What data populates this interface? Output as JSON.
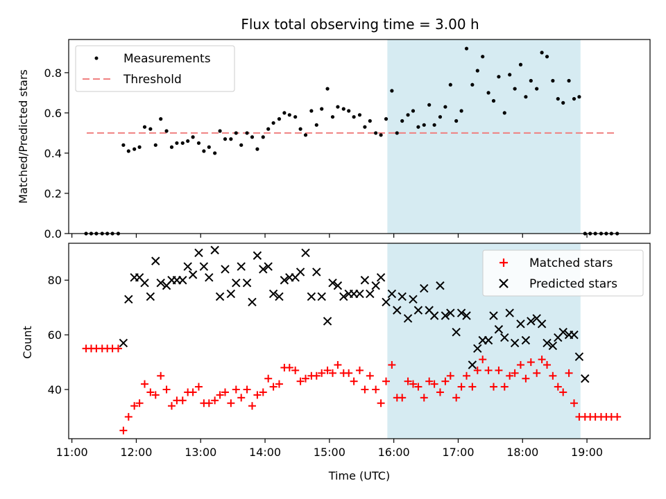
{
  "title": "Flux total observing time = 3.00 h",
  "colors": {
    "measurement": "#000000",
    "threshold": "#f08080",
    "matched": "#ff0000",
    "predicted": "#000000",
    "span": "#add8e6"
  },
  "chart_data": [
    {
      "type": "scatter",
      "panel": "top",
      "ylabel": "Matched/Predicted stars",
      "xlim_hours": [
        10.95,
        19.98
      ],
      "ylim": [
        0,
        0.965
      ],
      "yticks": [
        0.0,
        0.2,
        0.4,
        0.6,
        0.8
      ],
      "ytick_labels": [
        "0.0",
        "0.2",
        "0.4",
        "0.6",
        "0.8"
      ],
      "highlight_span_hours": [
        15.9,
        18.9
      ],
      "threshold": {
        "name": "Threshold",
        "y": 0.5,
        "x_range_hours": [
          11.23,
          19.45
        ]
      },
      "legend_location": "upper-left",
      "series": [
        {
          "name": "Measurements",
          "x": [
            11.22,
            11.3,
            11.38,
            11.47,
            11.55,
            11.63,
            11.72,
            11.8,
            11.88,
            11.97,
            12.05,
            12.13,
            12.22,
            12.3,
            12.38,
            12.47,
            12.55,
            12.63,
            12.72,
            12.8,
            12.88,
            12.97,
            13.05,
            13.13,
            13.22,
            13.3,
            13.38,
            13.47,
            13.55,
            13.63,
            13.72,
            13.8,
            13.88,
            13.97,
            14.05,
            14.13,
            14.22,
            14.3,
            14.38,
            14.47,
            14.55,
            14.63,
            14.72,
            14.8,
            14.88,
            14.97,
            15.05,
            15.13,
            15.22,
            15.3,
            15.38,
            15.47,
            15.55,
            15.63,
            15.72,
            15.8,
            15.88,
            15.97,
            16.05,
            16.13,
            16.22,
            16.3,
            16.38,
            16.47,
            16.55,
            16.63,
            16.72,
            16.8,
            16.88,
            16.97,
            17.05,
            17.13,
            17.22,
            17.3,
            17.38,
            17.47,
            17.55,
            17.63,
            17.72,
            17.8,
            17.88,
            17.97,
            18.05,
            18.13,
            18.22,
            18.3,
            18.38,
            18.47,
            18.55,
            18.63,
            18.72,
            18.8,
            18.88,
            18.97,
            19.05,
            19.13,
            19.22,
            19.3,
            19.38,
            19.47
          ],
          "y": [
            0,
            0,
            0,
            0,
            0,
            0,
            0,
            0.44,
            0.41,
            0.42,
            0.43,
            0.53,
            0.52,
            0.44,
            0.57,
            0.51,
            0.43,
            0.45,
            0.45,
            0.46,
            0.48,
            0.45,
            0.41,
            0.43,
            0.4,
            0.51,
            0.47,
            0.47,
            0.5,
            0.44,
            0.5,
            0.48,
            0.42,
            0.48,
            0.52,
            0.55,
            0.57,
            0.6,
            0.59,
            0.58,
            0.52,
            0.49,
            0.61,
            0.54,
            0.62,
            0.72,
            0.58,
            0.63,
            0.62,
            0.61,
            0.58,
            0.59,
            0.53,
            0.56,
            0.5,
            0.49,
            0.57,
            0.71,
            0.5,
            0.56,
            0.59,
            0.61,
            0.53,
            0.54,
            0.64,
            0.54,
            0.58,
            0.63,
            0.74,
            0.56,
            0.61,
            0.92,
            0.74,
            0.81,
            0.88,
            0.7,
            0.66,
            0.78,
            0.6,
            0.79,
            0.72,
            0.84,
            0.68,
            0.76,
            0.72,
            0.9,
            0.88,
            0.76,
            0.67,
            0.65,
            0.76,
            0.67,
            0.68,
            0,
            0,
            0,
            0,
            0,
            0,
            0
          ]
        }
      ]
    },
    {
      "type": "scatter",
      "panel": "bottom",
      "ylabel": "Count",
      "xlabel": "Time (UTC)",
      "xlim_hours": [
        10.95,
        19.98
      ],
      "ylim": [
        22,
        93.5
      ],
      "yticks": [
        40,
        60,
        80
      ],
      "ytick_labels": [
        "40",
        "60",
        "80"
      ],
      "xticks_hours": [
        11,
        12,
        13,
        14,
        15,
        16,
        17,
        18,
        19
      ],
      "xtick_labels": [
        "11:00",
        "12:00",
        "13:00",
        "14:00",
        "15:00",
        "16:00",
        "17:00",
        "18:00",
        "19:00"
      ],
      "highlight_span_hours": [
        15.9,
        18.9
      ],
      "legend_location": "upper-right",
      "series": [
        {
          "name": "Matched stars",
          "marker": "plus",
          "x": [
            11.22,
            11.3,
            11.38,
            11.47,
            11.55,
            11.63,
            11.72,
            11.8,
            11.88,
            11.97,
            12.05,
            12.13,
            12.22,
            12.3,
            12.38,
            12.47,
            12.55,
            12.63,
            12.72,
            12.8,
            12.88,
            12.97,
            13.05,
            13.13,
            13.22,
            13.3,
            13.38,
            13.47,
            13.55,
            13.63,
            13.72,
            13.8,
            13.88,
            13.97,
            14.05,
            14.13,
            14.22,
            14.3,
            14.38,
            14.47,
            14.55,
            14.63,
            14.72,
            14.8,
            14.88,
            14.97,
            15.05,
            15.13,
            15.22,
            15.3,
            15.38,
            15.47,
            15.55,
            15.63,
            15.72,
            15.8,
            15.88,
            15.97,
            16.05,
            16.13,
            16.22,
            16.3,
            16.38,
            16.47,
            16.55,
            16.63,
            16.72,
            16.8,
            16.88,
            16.97,
            17.05,
            17.13,
            17.22,
            17.3,
            17.38,
            17.47,
            17.55,
            17.63,
            17.72,
            17.8,
            17.88,
            17.97,
            18.05,
            18.13,
            18.22,
            18.3,
            18.38,
            18.47,
            18.55,
            18.63,
            18.72,
            18.8,
            18.88,
            18.97,
            19.05,
            19.13,
            19.22,
            19.3,
            19.38,
            19.47
          ],
          "y": [
            55,
            55,
            55,
            55,
            55,
            55,
            55,
            25,
            30,
            34,
            35,
            42,
            39,
            38,
            45,
            40,
            34,
            36,
            36,
            39,
            39,
            41,
            35,
            35,
            36,
            38,
            39,
            35,
            40,
            37,
            40,
            34,
            38,
            39,
            44,
            41,
            42,
            48,
            48,
            47,
            43,
            44,
            45,
            45,
            46,
            47,
            46,
            49,
            46,
            46,
            43,
            47,
            40,
            45,
            40,
            35,
            43,
            49,
            37,
            37,
            43,
            42,
            41,
            37,
            43,
            42,
            39,
            43,
            45,
            37,
            41,
            45,
            41,
            47,
            51,
            47,
            41,
            47,
            41,
            45,
            46,
            49,
            44,
            50,
            46,
            51,
            49,
            45,
            41,
            39,
            46,
            35,
            30,
            30,
            30,
            30,
            30,
            30,
            30,
            30
          ]
        },
        {
          "name": "Predicted stars",
          "marker": "x",
          "x": [
            11.8,
            11.88,
            11.97,
            12.05,
            12.13,
            12.22,
            12.3,
            12.38,
            12.47,
            12.55,
            12.63,
            12.72,
            12.8,
            12.88,
            12.97,
            13.05,
            13.13,
            13.22,
            13.3,
            13.38,
            13.47,
            13.55,
            13.63,
            13.72,
            13.8,
            13.88,
            13.97,
            14.05,
            14.13,
            14.22,
            14.3,
            14.38,
            14.47,
            14.55,
            14.63,
            14.72,
            14.8,
            14.88,
            14.97,
            15.05,
            15.13,
            15.22,
            15.3,
            15.38,
            15.47,
            15.55,
            15.63,
            15.72,
            15.8,
            15.88,
            15.97,
            16.05,
            16.13,
            16.22,
            16.3,
            16.38,
            16.47,
            16.55,
            16.63,
            16.72,
            16.8,
            16.88,
            16.97,
            17.05,
            17.13,
            17.22,
            17.3,
            17.38,
            17.47,
            17.55,
            17.63,
            17.72,
            17.8,
            17.88,
            17.97,
            18.05,
            18.13,
            18.22,
            18.3,
            18.38,
            18.47,
            18.55,
            18.63,
            18.72,
            18.8,
            18.88,
            18.97
          ],
          "y": [
            57,
            73,
            81,
            81,
            79,
            74,
            87,
            79,
            78,
            80,
            80,
            80,
            85,
            82,
            90,
            85,
            81,
            91,
            74,
            84,
            75,
            79,
            85,
            79,
            72,
            89,
            84,
            85,
            75,
            74,
            80,
            81,
            81,
            83,
            90,
            74,
            83,
            74,
            65,
            79,
            78,
            74,
            75,
            75,
            75,
            80,
            75,
            78,
            81,
            72,
            75,
            69,
            74,
            66,
            73,
            69,
            77,
            69,
            67,
            78,
            67,
            68,
            61,
            68,
            67,
            49,
            55,
            58,
            58,
            67,
            62,
            59,
            68,
            57,
            64,
            58,
            65,
            66,
            64,
            57,
            56,
            59,
            61,
            60,
            60,
            52,
            44
          ]
        }
      ]
    }
  ]
}
